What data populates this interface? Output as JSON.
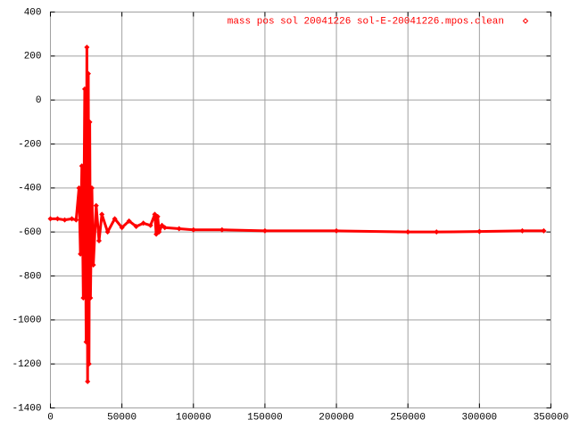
{
  "chart_data": {
    "type": "line",
    "series": [
      {
        "name": "mass pos sol 20041226 sol-E-20041226.mpos.clean",
        "color": "#ff0000",
        "x": [
          0,
          5000,
          10000,
          15000,
          18000,
          20000,
          21000,
          22000,
          23000,
          24000,
          25000,
          25500,
          26000,
          26500,
          27000,
          27500,
          28000,
          29000,
          30000,
          32000,
          34000,
          36000,
          40000,
          45000,
          50000,
          55000,
          60000,
          65000,
          70000,
          73000,
          74000,
          75000,
          76000,
          78000,
          80000,
          90000,
          100000,
          120000,
          150000,
          200000,
          250000,
          270000,
          300000,
          330000,
          345000
        ],
        "values": [
          -540,
          -540,
          -545,
          -540,
          -545,
          -400,
          -700,
          -300,
          -900,
          50,
          -1100,
          240,
          -1280,
          120,
          -1200,
          -100,
          -900,
          -400,
          -750,
          -480,
          -640,
          -520,
          -600,
          -540,
          -580,
          -550,
          -575,
          -560,
          -570,
          -520,
          -610,
          -530,
          -600,
          -570,
          -580,
          -585,
          -590,
          -590,
          -595,
          -595,
          -600,
          -600,
          -598,
          -595,
          -595
        ]
      }
    ],
    "xlim": [
      0,
      350000
    ],
    "xticks": [
      0,
      50000,
      100000,
      150000,
      200000,
      250000,
      300000,
      350000
    ],
    "ylim": [
      -1400,
      400
    ],
    "yticks": [
      -1400,
      -1200,
      -1000,
      -800,
      -600,
      -400,
      -200,
      0,
      200,
      400
    ],
    "grid": true,
    "legend": "top-right"
  }
}
